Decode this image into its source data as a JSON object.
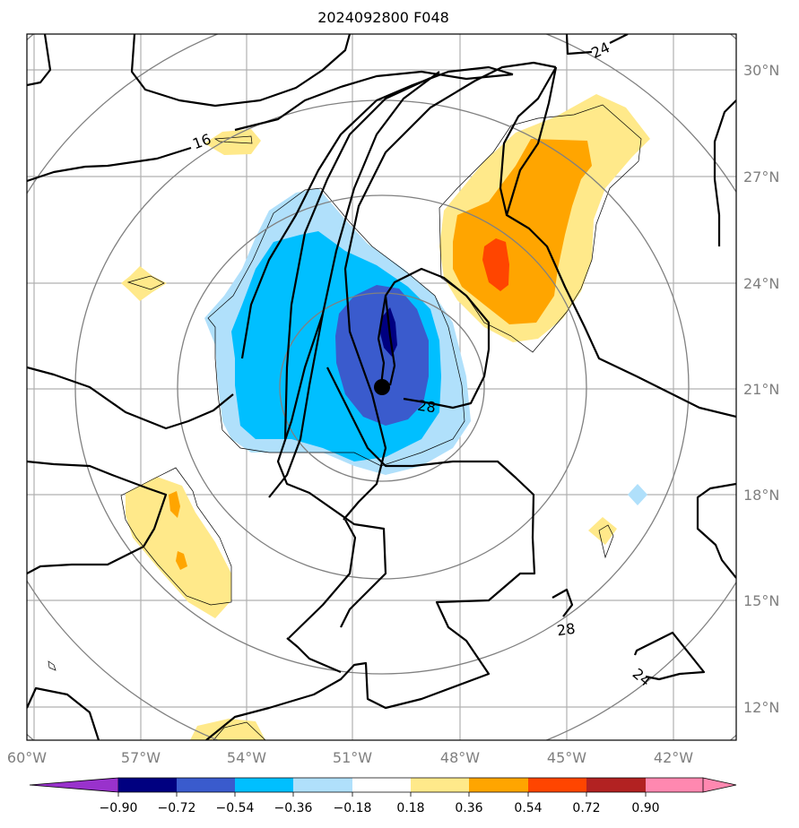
{
  "title": "2024092800 F048",
  "map": {
    "lon_labels": [
      "60°W",
      "57°W",
      "54°W",
      "51°W",
      "48°W",
      "45°W",
      "42°W"
    ],
    "lat_labels": [
      "30°N",
      "27°N",
      "24°N",
      "21°N",
      "18°N",
      "15°N",
      "12°N"
    ],
    "contour_labels": [
      "16",
      "24",
      "28",
      "28",
      "24"
    ],
    "storm_center": {
      "lat": 21.0,
      "lon": -49.2
    },
    "colors": {
      "grid": "#b0b0b0",
      "range_rings": "#808080",
      "contour": "#000000"
    }
  },
  "colorbar": {
    "tick_labels": [
      "−0.90",
      "−0.72",
      "−0.54",
      "−0.36",
      "−0.18",
      "0.18",
      "0.36",
      "0.54",
      "0.72",
      "0.90"
    ],
    "under_color": "#9932cc",
    "over_color": "#ff88b0",
    "colors": [
      "#000080",
      "#3a5bcd",
      "#00bfff",
      "#b0e0fb",
      "#ffffff",
      "#ffe98a",
      "#ffa500",
      "#ff4500",
      "#b22222"
    ]
  }
}
